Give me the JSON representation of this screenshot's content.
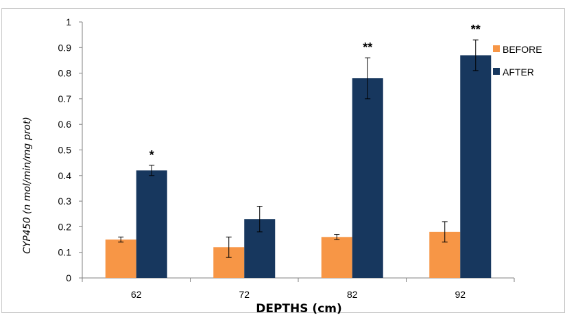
{
  "chart_data": {
    "type": "bar",
    "xlabel": "DEPTHS (cm)",
    "ylabel": "CYP450 (n mol/min/mg prot)",
    "categories": [
      "62",
      "72",
      "82",
      "92"
    ],
    "ylim": [
      0,
      1
    ],
    "yticks": [
      "0",
      "0.1",
      "0.2",
      "0.3",
      "0.4",
      "0.5",
      "0.6",
      "0.7",
      "0.8",
      "0.9",
      "1"
    ],
    "grid": false,
    "legend_position": "right",
    "series": [
      {
        "name": "BEFORE",
        "color": "#f79646",
        "values": [
          0.15,
          0.12,
          0.16,
          0.18
        ],
        "errors": [
          0.01,
          0.04,
          0.01,
          0.04
        ],
        "annotations": [
          "",
          "",
          "",
          ""
        ]
      },
      {
        "name": "AFTER",
        "color": "#17375e",
        "values": [
          0.42,
          0.23,
          0.78,
          0.87
        ],
        "errors": [
          0.02,
          0.05,
          0.08,
          0.06
        ],
        "annotations": [
          "*",
          "",
          "**",
          "**"
        ]
      }
    ]
  }
}
